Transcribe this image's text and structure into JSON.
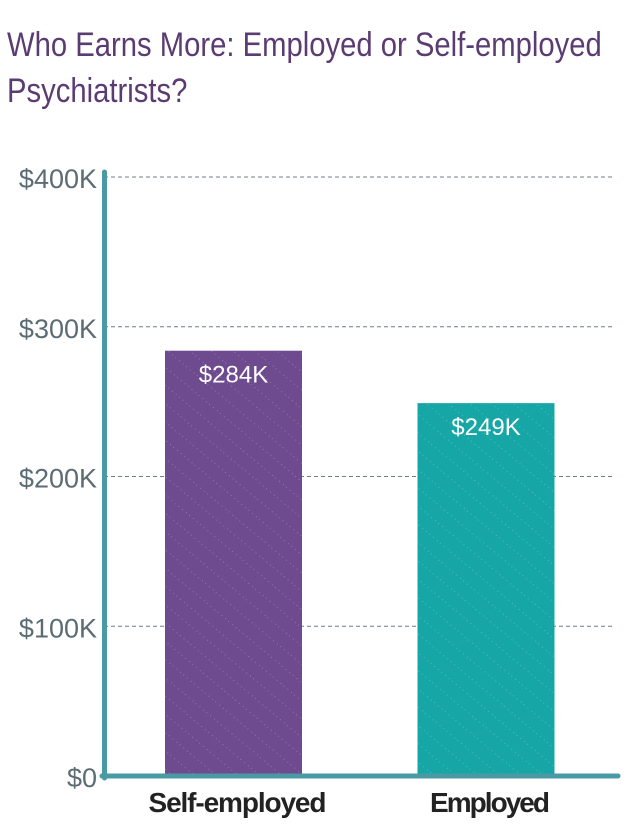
{
  "title": "Who Earns More: Employed or Self-employed Psychiatrists?",
  "chart_data": {
    "type": "bar",
    "title": "Who Earns More: Employed or Self-employed Psychiatrists?",
    "categories": [
      "Self-employed",
      "Employed"
    ],
    "values": [
      284,
      249
    ],
    "data_labels": [
      "$284K",
      "$249K"
    ],
    "unit": "thousand USD",
    "ylim": [
      0,
      400
    ],
    "yticks": [
      0,
      100,
      200,
      300,
      400
    ],
    "ytick_labels": [
      "$0",
      "$100K",
      "$200K",
      "$300K",
      "$400K"
    ],
    "xlabel": "",
    "ylabel": "",
    "grid": true,
    "legend": "none",
    "colors": [
      "#6e4a8f",
      "#17a6a6"
    ],
    "axis_color": "#4a9aa3",
    "title_color": "#5b3c72"
  }
}
